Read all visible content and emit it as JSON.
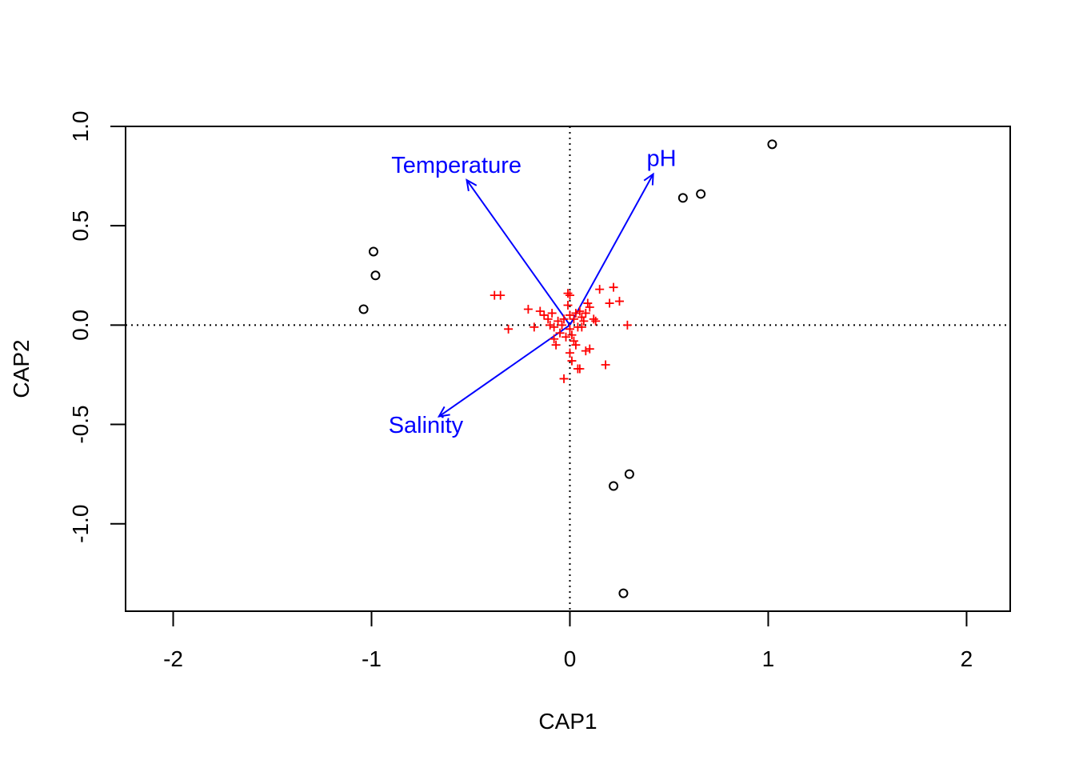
{
  "chart_data": {
    "type": "scatter",
    "title": "",
    "xlabel": "CAP1",
    "ylabel": "CAP2",
    "xlim": [
      -2.24,
      2.22
    ],
    "ylim": [
      -1.44,
      1.0
    ],
    "xticks": [
      -2,
      -1,
      0,
      1,
      2
    ],
    "xtick_labels": [
      "-2",
      "-1",
      "0",
      "1",
      "2"
    ],
    "yticks": [
      -1.0,
      -0.5,
      0.0,
      0.5,
      1.0
    ],
    "ytick_labels": [
      "-1.0",
      "-0.5",
      "0.0",
      "0.5",
      "1.0"
    ],
    "reference_lines": {
      "x": 0,
      "y": 0,
      "style": "dotted"
    },
    "colors": {
      "sites": "#000000",
      "species": "#ff0000",
      "vectors": "#0000ff"
    },
    "sites": {
      "marker": "open-circle",
      "points": [
        {
          "x": 1.02,
          "y": 0.91
        },
        {
          "x": 0.57,
          "y": 0.64
        },
        {
          "x": 0.66,
          "y": 0.66
        },
        {
          "x": -0.99,
          "y": 0.37
        },
        {
          "x": -0.98,
          "y": 0.25
        },
        {
          "x": -1.04,
          "y": 0.08
        },
        {
          "x": 0.22,
          "y": -0.81
        },
        {
          "x": 0.3,
          "y": -0.75
        },
        {
          "x": 0.27,
          "y": -1.35
        }
      ]
    },
    "species": {
      "marker": "plus",
      "points": [
        {
          "x": -0.38,
          "y": 0.15
        },
        {
          "x": -0.35,
          "y": 0.15
        },
        {
          "x": -0.31,
          "y": -0.02
        },
        {
          "x": -0.21,
          "y": 0.08
        },
        {
          "x": -0.18,
          "y": -0.01
        },
        {
          "x": -0.15,
          "y": 0.07
        },
        {
          "x": -0.13,
          "y": 0.05
        },
        {
          "x": -0.11,
          "y": 0.03
        },
        {
          "x": -0.1,
          "y": 0.0
        },
        {
          "x": -0.09,
          "y": 0.06
        },
        {
          "x": -0.08,
          "y": -0.01
        },
        {
          "x": -0.08,
          "y": -0.07
        },
        {
          "x": -0.07,
          "y": -0.1
        },
        {
          "x": -0.06,
          "y": 0.02
        },
        {
          "x": -0.05,
          "y": -0.04
        },
        {
          "x": -0.04,
          "y": 0.0
        },
        {
          "x": -0.03,
          "y": 0.03
        },
        {
          "x": -0.02,
          "y": -0.06
        },
        {
          "x": -0.01,
          "y": 0.16
        },
        {
          "x": 0.0,
          "y": 0.15
        },
        {
          "x": -0.01,
          "y": 0.1
        },
        {
          "x": 0.0,
          "y": 0.05
        },
        {
          "x": 0.0,
          "y": -0.02
        },
        {
          "x": 0.01,
          "y": -0.05
        },
        {
          "x": 0.0,
          "y": -0.14
        },
        {
          "x": -0.03,
          "y": -0.27
        },
        {
          "x": 0.01,
          "y": -0.18
        },
        {
          "x": 0.02,
          "y": -0.08
        },
        {
          "x": 0.02,
          "y": 0.03
        },
        {
          "x": 0.03,
          "y": 0.06
        },
        {
          "x": 0.03,
          "y": -0.1
        },
        {
          "x": 0.04,
          "y": -0.01
        },
        {
          "x": 0.04,
          "y": -0.22
        },
        {
          "x": 0.05,
          "y": -0.22
        },
        {
          "x": 0.05,
          "y": 0.07
        },
        {
          "x": 0.06,
          "y": 0.04
        },
        {
          "x": 0.06,
          "y": -0.01
        },
        {
          "x": 0.07,
          "y": 0.02
        },
        {
          "x": 0.08,
          "y": 0.06
        },
        {
          "x": 0.09,
          "y": 0.11
        },
        {
          "x": 0.08,
          "y": -0.13
        },
        {
          "x": 0.1,
          "y": -0.12
        },
        {
          "x": 0.1,
          "y": 0.09
        },
        {
          "x": 0.12,
          "y": 0.03
        },
        {
          "x": 0.13,
          "y": 0.02
        },
        {
          "x": 0.15,
          "y": 0.18
        },
        {
          "x": 0.18,
          "y": -0.2
        },
        {
          "x": 0.2,
          "y": 0.11
        },
        {
          "x": 0.22,
          "y": 0.19
        },
        {
          "x": 0.25,
          "y": 0.12
        },
        {
          "x": 0.29,
          "y": 0.0
        }
      ]
    },
    "vectors": [
      {
        "name": "Temperature",
        "x": -0.52,
        "y": 0.73
      },
      {
        "name": "pH",
        "x": 0.42,
        "y": 0.76
      },
      {
        "name": "Salinity",
        "x": -0.66,
        "y": -0.46
      }
    ]
  }
}
